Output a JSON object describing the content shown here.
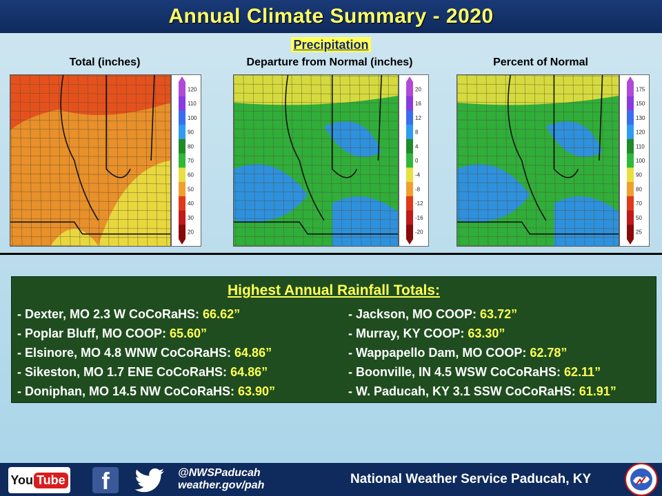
{
  "header": {
    "title": "Annual Climate Summary - 2020"
  },
  "section": {
    "heading": "Precipitation"
  },
  "panels": [
    {
      "title": "Total (inches)",
      "legend_labels": [
        "120",
        "110",
        "100",
        "90",
        "80",
        "70",
        "60",
        "50",
        "40",
        "30",
        "20"
      ],
      "colors": {
        "primary": "#e8902a",
        "secondary": "#e44a1c",
        "accent": "#e8e040"
      }
    },
    {
      "title": "Departure from Normal (inches)",
      "legend_labels": [
        "20",
        "16",
        "12",
        "8",
        "4",
        "0",
        "-4",
        "-8",
        "-12",
        "-16",
        "-20"
      ],
      "colors": {
        "primary": "#2fae3a",
        "secondary": "#2f8ef0",
        "accent": "#e8e040"
      }
    },
    {
      "title": "Percent of Normal",
      "legend_labels": [
        "175",
        "150",
        "130",
        "120",
        "110",
        "100",
        "90",
        "80",
        "70",
        "50",
        "25"
      ],
      "colors": {
        "primary": "#2fae3a",
        "secondary": "#2f8ef0",
        "accent": "#e8e040"
      }
    }
  ],
  "legend_colors": [
    "#b04ad8",
    "#8a3ae0",
    "#3a6ef0",
    "#2f9cf0",
    "#1f8a2a",
    "#2fb83a",
    "#e8e040",
    "#f0a030",
    "#e03a1a",
    "#c01a1a",
    "#8a0a0a"
  ],
  "rainfall": {
    "title": "Highest Annual Rainfall Totals:",
    "left": [
      {
        "label": "- Dexter, MO 2.3 W CoCoRaHS: ",
        "value": "66.62”"
      },
      {
        "label": "- Poplar Bluff, MO COOP: ",
        "value": "65.60”"
      },
      {
        "label": "- Elsinore, MO 4.8 WNW CoCoRaHS: ",
        "value": "64.86”"
      },
      {
        "label": "- Sikeston, MO 1.7 ENE CoCoRaHS: ",
        "value": "64.86”"
      },
      {
        "label": "- Doniphan, MO 14.5 NW CoCoRaHS: ",
        "value": "63.90”"
      }
    ],
    "right": [
      {
        "label": "- Jackson, MO COOP: ",
        "value": "63.72”"
      },
      {
        "label": "- Murray, KY COOP: ",
        "value": "63.30”"
      },
      {
        "label": "- Wappapello Dam, MO COOP: ",
        "value": "62.78”"
      },
      {
        "label": "- Boonville, IN 4.5 WSW CoCoRaHS: ",
        "value": "62.11”"
      },
      {
        "label": "- W. Paducah, KY 3.1 SSW CoCoRaHS: ",
        "value": "61.91”"
      }
    ]
  },
  "footer": {
    "youtube_you": "You",
    "youtube_tube": "Tube",
    "facebook_glyph": "f",
    "handle": "@NWSPaducah",
    "website": "weather.gov/pah",
    "office": "National Weather Service Paducah, KY",
    "icons": [
      "youtube-icon",
      "facebook-icon",
      "twitter-icon",
      "nws-logo-icon"
    ]
  }
}
